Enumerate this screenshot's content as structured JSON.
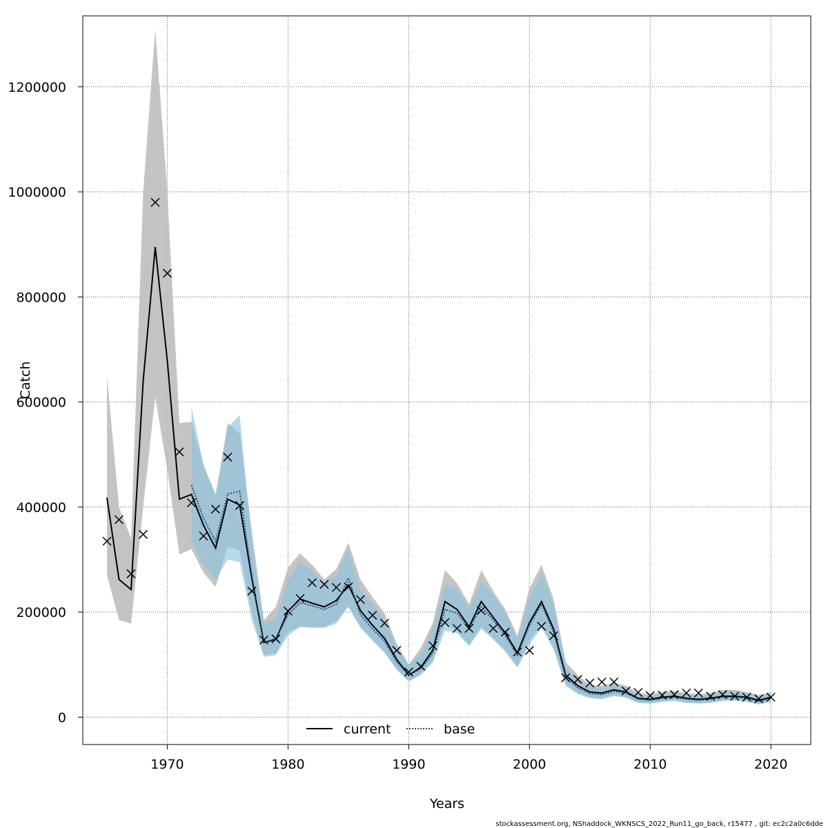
{
  "chart_data": {
    "type": "line",
    "title": "",
    "xlabel": "Years",
    "ylabel": "Catch",
    "xlim": [
      1963,
      2023.3
    ],
    "ylim": [
      -52000,
      1335000
    ],
    "x_ticks": [
      1970,
      1980,
      1990,
      2000,
      2010,
      2020
    ],
    "y_ticks": [
      0,
      200000,
      400000,
      600000,
      800000,
      1000000,
      1200000
    ],
    "grid": true,
    "legend_position": "bottom-center",
    "footer": "stockassessment.org, NShaddock_WKNSCS_2022_Run11_go_back, r15477 , git: ec2c2a0c6dde",
    "colors": {
      "current_line": "#000000",
      "current_band": "#bebebe",
      "base_line": "#1f4e79",
      "base_band": "#8ec3e0",
      "observed_marker": "#000000"
    },
    "series": [
      {
        "name": "current",
        "style": "solid",
        "x": [
          1965,
          1966,
          1967,
          1968,
          1969,
          1970,
          1971,
          1972,
          1973,
          1974,
          1975,
          1976,
          1977,
          1978,
          1979,
          1980,
          1981,
          1982,
          1983,
          1984,
          1985,
          1986,
          1987,
          1988,
          1989,
          1990,
          1991,
          1992,
          1993,
          1994,
          1995,
          1996,
          1997,
          1998,
          1999,
          2000,
          2001,
          2002,
          2003,
          2004,
          2005,
          2006,
          2007,
          2008,
          2009,
          2010,
          2011,
          2012,
          2013,
          2014,
          2015,
          2016,
          2017,
          2018,
          2019,
          2020
        ],
        "values": [
          418000,
          262000,
          243000,
          640000,
          895000,
          678000,
          415000,
          424000,
          365000,
          322000,
          415000,
          404000,
          265000,
          142000,
          148000,
          202000,
          225000,
          217000,
          210000,
          222000,
          252000,
          203000,
          175000,
          150000,
          110000,
          80000,
          95000,
          128000,
          220000,
          205000,
          172000,
          220000,
          190000,
          160000,
          122000,
          180000,
          220000,
          168000,
          80000,
          60000,
          48000,
          46000,
          52000,
          48000,
          36000,
          34000,
          38000,
          40000,
          36000,
          34000,
          36000,
          40000,
          40000,
          38000,
          32000,
          38000
        ],
        "lower": [
          270000,
          185000,
          178000,
          400000,
          610000,
          470000,
          310000,
          320000,
          275000,
          248000,
          325000,
          318000,
          198000,
          118000,
          122000,
          162000,
          172000,
          172000,
          172000,
          182000,
          210000,
          172000,
          148000,
          125000,
          92000,
          68000,
          82000,
          108000,
          178000,
          165000,
          138000,
          172000,
          150000,
          128000,
          96000,
          145000,
          178000,
          132000,
          62000,
          46000,
          38000,
          36000,
          42000,
          38000,
          28000,
          27000,
          30000,
          32000,
          28000,
          27000,
          28000,
          32000,
          32000,
          30000,
          25000,
          30000
        ],
        "upper": [
          650000,
          400000,
          340000,
          1000000,
          1310000,
          1000000,
          560000,
          562000,
          480000,
          420000,
          560000,
          540000,
          355000,
          185000,
          210000,
          285000,
          312000,
          290000,
          262000,
          282000,
          332000,
          262000,
          228000,
          198000,
          140000,
          100000,
          132000,
          180000,
          280000,
          255000,
          215000,
          280000,
          240000,
          205000,
          155000,
          245000,
          290000,
          225000,
          105000,
          80000,
          62000,
          60000,
          66000,
          60000,
          46000,
          44000,
          48000,
          50000,
          46000,
          44000,
          46000,
          52000,
          52000,
          48000,
          42000,
          48000
        ]
      },
      {
        "name": "base",
        "style": "dotted",
        "x": [
          1972,
          1973,
          1974,
          1975,
          1976,
          1977,
          1978,
          1979,
          1980,
          1981,
          1982,
          1983,
          1984,
          1985,
          1986,
          1987,
          1988,
          1989,
          1990,
          1991,
          1992,
          1993,
          1994,
          1995,
          1996,
          1997,
          1998,
          1999,
          2000,
          2001,
          2002,
          2003,
          2004,
          2005,
          2006,
          2007,
          2008,
          2009,
          2010,
          2011,
          2012,
          2013,
          2014,
          2015,
          2016,
          2017,
          2018,
          2019,
          2020
        ],
        "values": [
          442000,
          378000,
          335000,
          425000,
          430000,
          270000,
          142000,
          150000,
          195000,
          218000,
          212000,
          205000,
          215000,
          265000,
          195000,
          168000,
          145000,
          105000,
          80000,
          92000,
          122000,
          205000,
          198000,
          168000,
          210000,
          185000,
          155000,
          118000,
          175000,
          215000,
          162000,
          76000,
          56000,
          45000,
          43000,
          49000,
          46000,
          34000,
          32000,
          36000,
          38000,
          34000,
          32000,
          34000,
          38000,
          38000,
          36000,
          30000,
          36000
        ],
        "lower": [
          335000,
          290000,
          262000,
          300000,
          295000,
          185000,
          115000,
          118000,
          155000,
          172000,
          170000,
          170000,
          178000,
          212000,
          170000,
          145000,
          122000,
          90000,
          68000,
          80000,
          104000,
          165000,
          160000,
          135000,
          168000,
          148000,
          124000,
          94000,
          138000,
          170000,
          128000,
          60000,
          44000,
          36000,
          34000,
          40000,
          37000,
          27000,
          26000,
          29000,
          31000,
          27000,
          26000,
          27000,
          31000,
          31000,
          29000,
          24000,
          29000
        ],
        "upper": [
          590000,
          480000,
          425000,
          552000,
          575000,
          330000,
          178000,
          188000,
          260000,
          295000,
          278000,
          255000,
          270000,
          320000,
          242000,
          215000,
          185000,
          135000,
          100000,
          120000,
          170000,
          252000,
          245000,
          205000,
          258000,
          232000,
          198000,
          150000,
          225000,
          275000,
          215000,
          96000,
          70000,
          58000,
          55000,
          61000,
          57000,
          43000,
          41000,
          45000,
          47000,
          43000,
          41000,
          43000,
          50000,
          49000,
          46000,
          40000,
          46000
        ]
      }
    ],
    "observed": {
      "marker": "x",
      "x": [
        1965,
        1966,
        1967,
        1968,
        1969,
        1970,
        1971,
        1972,
        1973,
        1974,
        1975,
        1976,
        1977,
        1978,
        1979,
        1980,
        1981,
        1982,
        1983,
        1984,
        1985,
        1986,
        1987,
        1988,
        1989,
        1990,
        1991,
        1992,
        1993,
        1994,
        1995,
        1996,
        1997,
        1998,
        1999,
        2000,
        2001,
        2002,
        2003,
        2004,
        2005,
        2006,
        2007,
        2008,
        2009,
        2010,
        2011,
        2012,
        2013,
        2014,
        2015,
        2016,
        2017,
        2018,
        2019,
        2020
      ],
      "values": [
        335000,
        376000,
        273000,
        348000,
        980000,
        845000,
        505000,
        408000,
        345000,
        396000,
        495000,
        403000,
        240000,
        147000,
        149000,
        202000,
        226000,
        256000,
        253000,
        247000,
        248000,
        224000,
        194000,
        179000,
        127000,
        86000,
        97000,
        136000,
        180000,
        169000,
        169000,
        203000,
        169000,
        162000,
        124000,
        127000,
        173000,
        155000,
        75000,
        72000,
        65000,
        67000,
        67000,
        50000,
        47000,
        41000,
        42000,
        43000,
        46000,
        46000,
        40000,
        43000,
        40000,
        38000,
        35000,
        38000
      ]
    }
  }
}
